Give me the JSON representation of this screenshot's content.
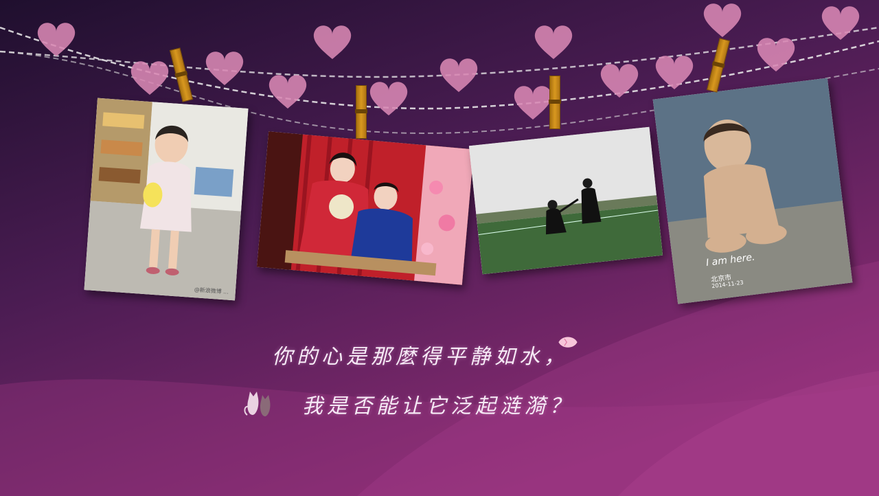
{
  "slide": {
    "line1": "你的心是那麼得平静如水，",
    "line2": "我是否能让它泛起涟漪？"
  },
  "photos": [
    {
      "name": "photo-toddler-girl",
      "watermark": "@新浪微博 ..."
    },
    {
      "name": "photo-couple-traditional-dress"
    },
    {
      "name": "photo-graduation-proposal"
    },
    {
      "name": "photo-baby-sitting",
      "stamp_text": "I am here.",
      "city": "北京市",
      "date": "2014-11-23"
    }
  ],
  "icons": {
    "hearts": "heart-icon",
    "petal": "petal-icon",
    "cats": "cats-icon",
    "clips": "clothespin-icon"
  },
  "colors": {
    "background_top": "#2a1236",
    "background_bottom": "#8a2c72",
    "heart": "#d988b4",
    "text": "#f6eaf6",
    "clip": "#d8981f"
  }
}
